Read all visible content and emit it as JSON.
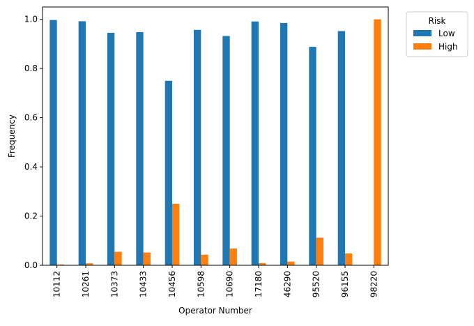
{
  "chart_data": {
    "type": "bar",
    "categories": [
      "10112",
      "10261",
      "10373",
      "10433",
      "10456",
      "10598",
      "10690",
      "17180",
      "46290",
      "95520",
      "96155",
      "98220"
    ],
    "series": [
      {
        "name": "Low",
        "color": "#1f77b4",
        "values": [
          0.997,
          0.992,
          0.945,
          0.948,
          0.75,
          0.957,
          0.932,
          0.991,
          0.985,
          0.888,
          0.952,
          0.0
        ]
      },
      {
        "name": "High",
        "color": "#ff7f0e",
        "values": [
          0.003,
          0.008,
          0.055,
          0.052,
          0.25,
          0.043,
          0.068,
          0.009,
          0.015,
          0.112,
          0.048,
          1.0
        ]
      }
    ],
    "xlabel": "Operator Number",
    "ylabel": "Frequency",
    "ylim": [
      0,
      1.05
    ],
    "yticks": [
      "0.0",
      "0.2",
      "0.4",
      "0.6",
      "0.8",
      "1.0"
    ],
    "legend": {
      "title": "Risk",
      "placement": "outside-top-right"
    },
    "grid": false
  }
}
